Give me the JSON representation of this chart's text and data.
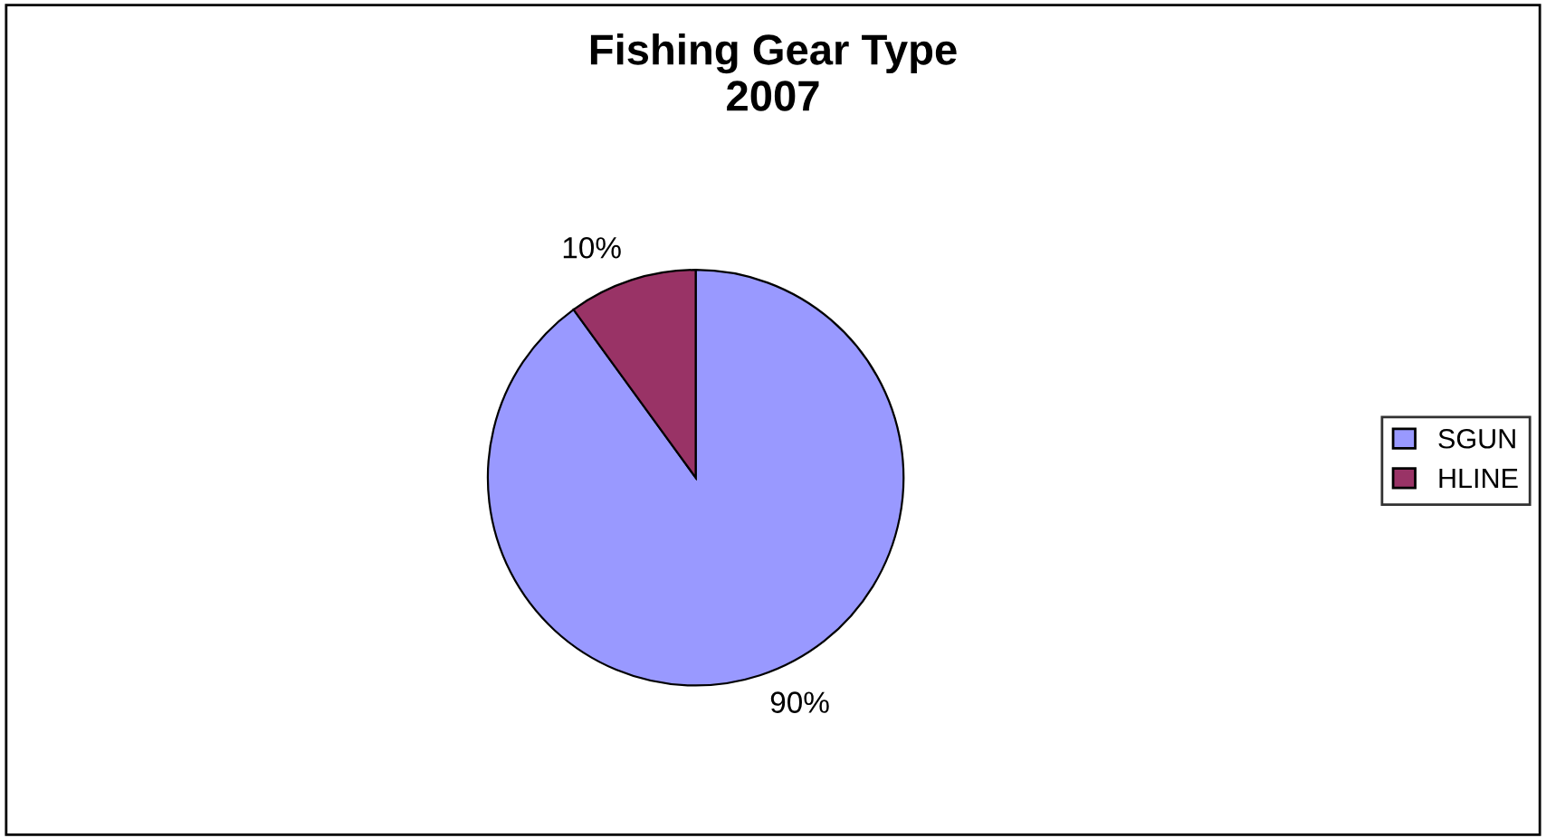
{
  "chart_data": {
    "type": "pie",
    "title": "Fishing Gear Type\n2007",
    "categories": [
      "SGUN",
      "HLINE"
    ],
    "values": [
      90,
      10
    ],
    "colors": [
      "#9999ff",
      "#993366"
    ],
    "value_labels": [
      "90%",
      "10%"
    ],
    "legend": "right"
  }
}
